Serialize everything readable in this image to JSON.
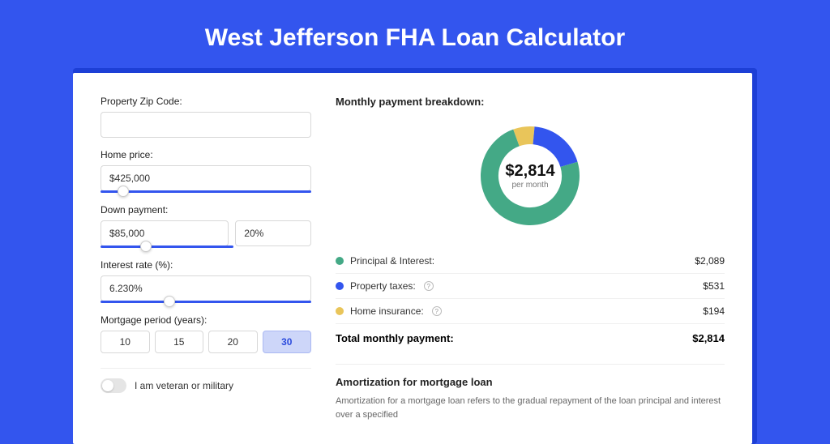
{
  "page": {
    "title": "West Jefferson FHA Loan Calculator",
    "colors": {
      "bg": "#3355ee",
      "accent": "#3355ee",
      "green": "#44a986",
      "blue": "#3355ee",
      "yellow": "#e9c55a"
    }
  },
  "form": {
    "zip": {
      "label": "Property Zip Code:",
      "value": ""
    },
    "home_price": {
      "label": "Home price:",
      "value": "$425,000",
      "slider_pct": 8
    },
    "down_payment": {
      "label": "Down payment:",
      "amount": "$85,000",
      "pct": "20%",
      "slider_pct": 20
    },
    "interest": {
      "label": "Interest rate (%):",
      "value": "6.230%",
      "slider_pct": 30
    },
    "period": {
      "label": "Mortgage period (years):",
      "options": [
        "10",
        "15",
        "20",
        "30"
      ],
      "selected": "30"
    },
    "veteran": {
      "label": "I am veteran or military",
      "checked": false
    }
  },
  "breakdown": {
    "title": "Monthly payment breakdown:",
    "center_value": "$2,814",
    "center_sub": "per month",
    "items": [
      {
        "label": "Principal & Interest:",
        "value": "$2,089",
        "color": "#44a986",
        "pct": 74,
        "info": false
      },
      {
        "label": "Property taxes:",
        "value": "$531",
        "color": "#3355ee",
        "pct": 19,
        "info": true
      },
      {
        "label": "Home insurance:",
        "value": "$194",
        "color": "#e9c55a",
        "pct": 7,
        "info": true
      }
    ],
    "total_label": "Total monthly payment:",
    "total_value": "$2,814"
  },
  "amortization": {
    "title": "Amortization for mortgage loan",
    "body": "Amortization for a mortgage loan refers to the gradual repayment of the loan principal and interest over a specified"
  }
}
